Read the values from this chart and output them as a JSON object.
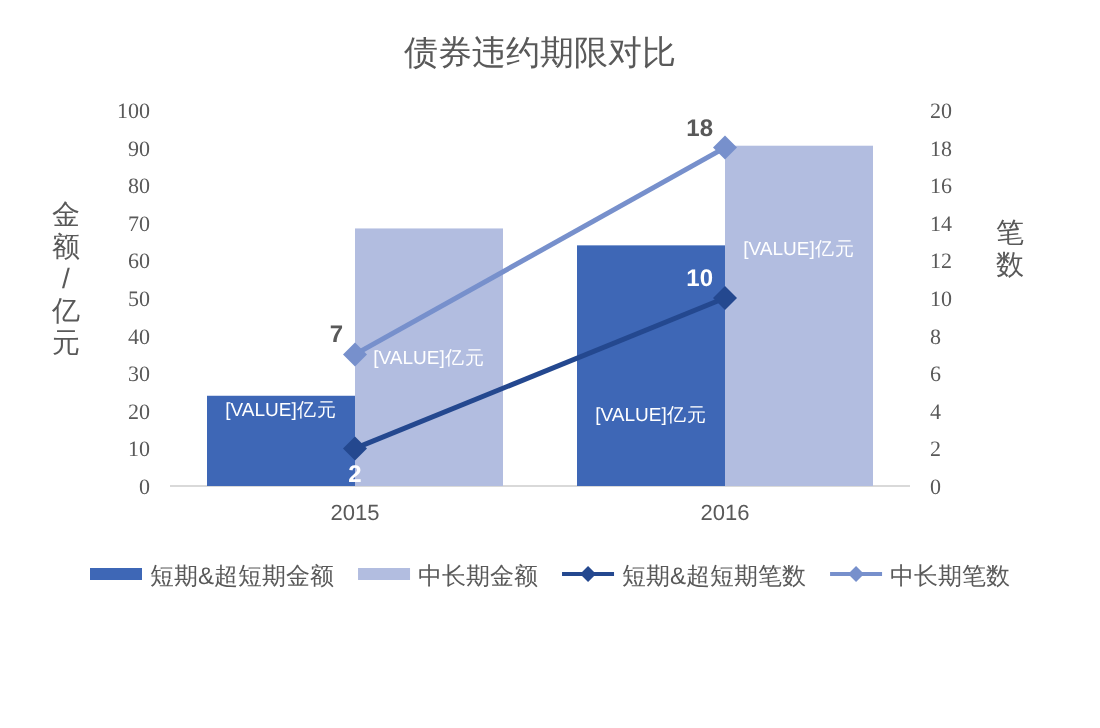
{
  "chart_data": {
    "type": "bar",
    "title": "债券违约期限对比",
    "ylabel": "金额/亿元",
    "y2label": "笔数",
    "categories": [
      "2015",
      "2016"
    ],
    "series": [
      {
        "name": "短期&超短期金额",
        "color": "#3e67b6",
        "values": [
          24,
          64
        ],
        "value_labels": [
          "[VALUE]亿元",
          "[VALUE]亿元"
        ]
      },
      {
        "name": "中长期金额",
        "color": "#b2bde0",
        "values": [
          68.5,
          90.5
        ],
        "value_labels": [
          "[VALUE]亿元",
          "[VALUE]亿元"
        ]
      },
      {
        "name": "短期&超短期笔数",
        "type": "line",
        "axis": "y2",
        "color": "#24488f",
        "values": [
          2,
          10
        ],
        "marker": "diamond",
        "data_labels": true
      },
      {
        "name": "中长期笔数",
        "type": "line",
        "axis": "y2",
        "color": "#7790cc",
        "values": [
          7,
          18
        ],
        "marker": "diamond",
        "data_labels": true
      }
    ],
    "ylim": [
      0,
      100
    ],
    "yticks": [
      0,
      10,
      20,
      30,
      40,
      50,
      60,
      70,
      80,
      90,
      100
    ],
    "y2lim": [
      0,
      20
    ],
    "y2ticks": [
      0,
      2,
      4,
      6,
      8,
      10,
      12,
      14,
      16,
      18,
      20
    ],
    "grid": false,
    "legend": "bottom"
  }
}
